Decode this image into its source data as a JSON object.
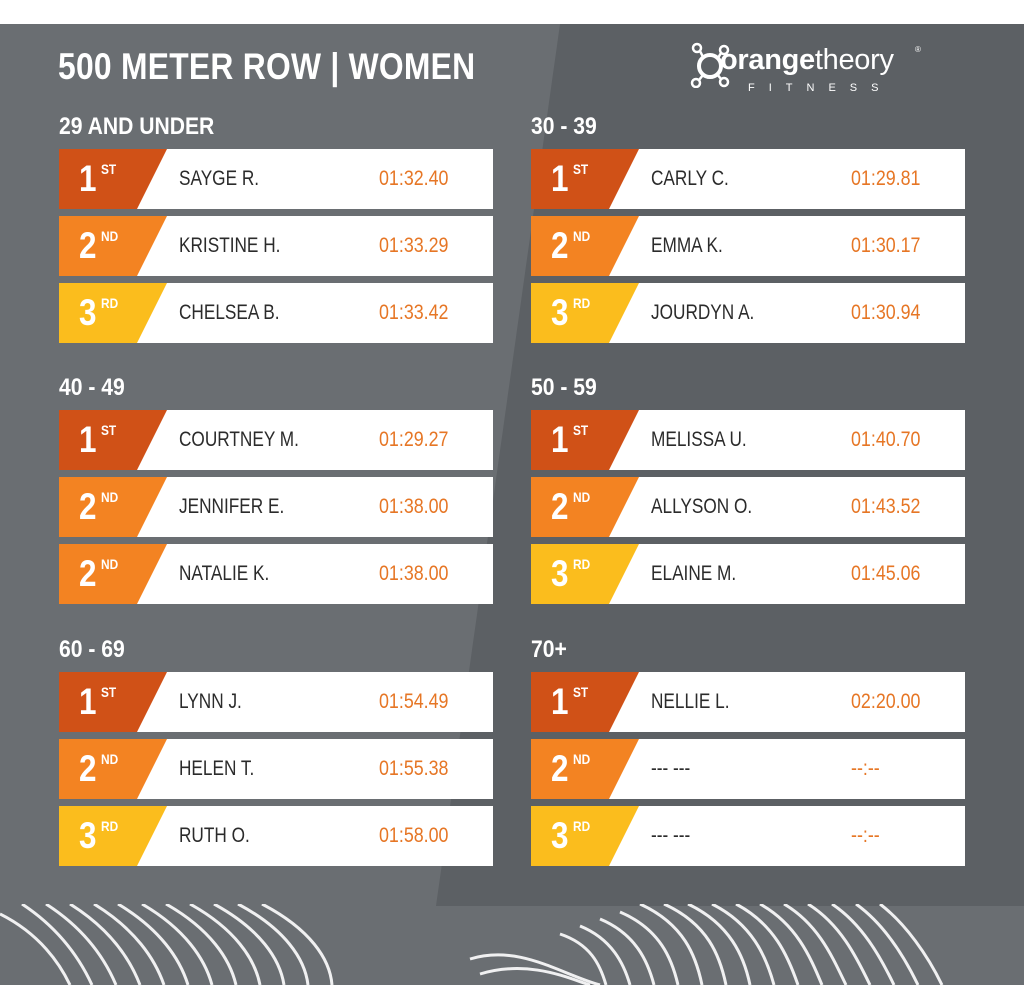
{
  "title": "500 METER ROW | WOMEN",
  "logo": {
    "word_bold": "orange",
    "word_light": "theory",
    "registered": "®",
    "sub": "FITNESS"
  },
  "colors": {
    "first": "#d05117",
    "second": "#f38322",
    "third": "#fbbd1d",
    "time": "#e67625"
  },
  "groups": [
    {
      "label": "29 AND UNDER",
      "rows": [
        {
          "num": "1",
          "suf": "ST",
          "name": "SAYGE R.",
          "time": "01:32.40"
        },
        {
          "num": "2",
          "suf": "ND",
          "name": "KRISTINE H.",
          "time": "01:33.29"
        },
        {
          "num": "3",
          "suf": "RD",
          "name": "CHELSEA B.",
          "time": "01:33.42"
        }
      ]
    },
    {
      "label": "30 - 39",
      "rows": [
        {
          "num": "1",
          "suf": "ST",
          "name": "CARLY C.",
          "time": "01:29.81"
        },
        {
          "num": "2",
          "suf": "ND",
          "name": "EMMA K.",
          "time": "01:30.17"
        },
        {
          "num": "3",
          "suf": "RD",
          "name": "JOURDYN A.",
          "time": "01:30.94"
        }
      ]
    },
    {
      "label": "40 - 49",
      "rows": [
        {
          "num": "1",
          "suf": "ST",
          "name": "COURTNEY M.",
          "time": "01:29.27"
        },
        {
          "num": "2",
          "suf": "ND",
          "name": "JENNIFER E.",
          "time": "01:38.00"
        },
        {
          "num": "2",
          "suf": "ND",
          "name": "NATALIE K.",
          "time": "01:38.00"
        }
      ]
    },
    {
      "label": "50 - 59",
      "rows": [
        {
          "num": "1",
          "suf": "ST",
          "name": "MELISSA U.",
          "time": "01:40.70"
        },
        {
          "num": "2",
          "suf": "ND",
          "name": "ALLYSON O.",
          "time": "01:43.52"
        },
        {
          "num": "3",
          "suf": "RD",
          "name": "ELAINE M.",
          "time": "01:45.06"
        }
      ]
    },
    {
      "label": "60 - 69",
      "rows": [
        {
          "num": "1",
          "suf": "ST",
          "name": "LYNN J.",
          "time": "01:54.49"
        },
        {
          "num": "2",
          "suf": "ND",
          "name": "HELEN T.",
          "time": "01:55.38"
        },
        {
          "num": "3",
          "suf": "RD",
          "name": "RUTH O.",
          "time": "01:58.00"
        }
      ]
    },
    {
      "label": "70+",
      "rows": [
        {
          "num": "1",
          "suf": "ST",
          "name": "NELLIE L.",
          "time": "02:20.00"
        },
        {
          "num": "2",
          "suf": "ND",
          "name": "--- ---",
          "time": "--:--"
        },
        {
          "num": "3",
          "suf": "RD",
          "name": "--- ---",
          "time": "--:--"
        }
      ]
    }
  ]
}
